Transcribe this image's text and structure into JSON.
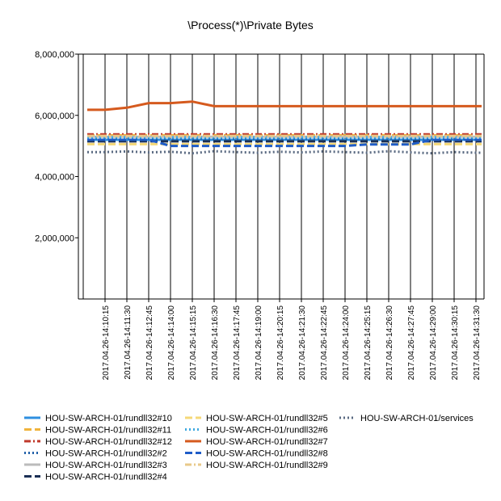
{
  "chart_data": {
    "type": "line",
    "title": "\\Process(*)\\Private Bytes",
    "ylim": [
      0,
      8000000
    ],
    "y_ticks": [
      "8,000,000",
      "6,000,000",
      "4,000,000",
      "2,000,000"
    ],
    "y_tick_values": [
      8000000,
      6000000,
      4000000,
      2000000
    ],
    "grid": "vertical",
    "legend_position": "bottom",
    "x": [
      "2017.04.26-14:10:15",
      "2017.04.26-14:11:30",
      "2017.04.26-14:12:45",
      "2017.04.26-14:14:00",
      "2017.04.26-14:15:15",
      "2017.04.26-14:16:30",
      "2017.04.26-14:17:45",
      "2017.04.26-14:19:00",
      "2017.04.26-14:20:15",
      "2017.04.26-14:21:30",
      "2017.04.26-14:22:45",
      "2017.04.26-14:24:00",
      "2017.04.26-14:25:15",
      "2017.04.26-14:26:30",
      "2017.04.26-14:27:45",
      "2017.04.26-14:29:00",
      "2017.04.26-14:30:15",
      "2017.04.26-14:31:30"
    ],
    "series": [
      {
        "name": "HOU-SW-ARCH-01/rundll32#10",
        "color": "#2e8fe0",
        "style": "solid",
        "values": [
          5200000,
          5200000,
          5200000,
          5200000,
          5200000,
          5200000,
          5200000,
          5200000,
          5200000,
          5200000,
          5200000,
          5200000,
          5200000,
          5200000,
          5200000,
          5200000,
          5200000,
          5200000
        ]
      },
      {
        "name": "HOU-SW-ARCH-01/rundll32#11",
        "color": "#f0b43c",
        "style": "dashed",
        "values": [
          5350000,
          5350000,
          5350000,
          5350000,
          5350000,
          5350000,
          5350000,
          5350000,
          5350000,
          5350000,
          5350000,
          5350000,
          5350000,
          5350000,
          5350000,
          5350000,
          5350000,
          5350000
        ]
      },
      {
        "name": "HOU-SW-ARCH-01/rundll32#12",
        "color": "#c0392b",
        "style": "dashdot",
        "values": [
          5380000,
          5380000,
          5380000,
          5380000,
          5380000,
          5380000,
          5380000,
          5380000,
          5380000,
          5380000,
          5380000,
          5380000,
          5380000,
          5380000,
          5380000,
          5380000,
          5380000,
          5380000
        ]
      },
      {
        "name": "HOU-SW-ARCH-01/rundll32#2",
        "color": "#1f5fa8",
        "style": "dotted",
        "values": [
          5250000,
          5250000,
          5250000,
          5250000,
          5250000,
          5250000,
          5250000,
          5250000,
          5250000,
          5250000,
          5250000,
          5250000,
          5250000,
          5250000,
          5250000,
          5250000,
          5250000,
          5250000
        ]
      },
      {
        "name": "HOU-SW-ARCH-01/rundll32#3",
        "color": "#bbbbbb",
        "style": "solid",
        "values": [
          5300000,
          5300000,
          5300000,
          5300000,
          5300000,
          5300000,
          5300000,
          5300000,
          5300000,
          5300000,
          5300000,
          5300000,
          5300000,
          5300000,
          5300000,
          5300000,
          5300000,
          5300000
        ]
      },
      {
        "name": "HOU-SW-ARCH-01/rundll32#4",
        "color": "#1a2f55",
        "style": "dashed",
        "values": [
          5150000,
          5150000,
          5150000,
          5150000,
          5150000,
          5150000,
          5150000,
          5150000,
          5150000,
          5150000,
          5150000,
          5150000,
          5150000,
          5150000,
          5150000,
          5150000,
          5150000,
          5150000
        ]
      },
      {
        "name": "HOU-SW-ARCH-01/rundll32#5",
        "color": "#f5d878",
        "style": "dashed",
        "values": [
          5060000,
          5060000,
          5060000,
          5060000,
          5060000,
          5060000,
          5060000,
          5060000,
          5060000,
          5060000,
          5060000,
          5060000,
          5060000,
          5060000,
          5060000,
          5060000,
          5060000,
          5060000
        ]
      },
      {
        "name": "HOU-SW-ARCH-01/rundll32#6",
        "color": "#3fa9e0",
        "style": "dotted",
        "values": [
          5280000,
          5280000,
          5280000,
          5280000,
          5280000,
          5280000,
          5280000,
          5280000,
          5280000,
          5280000,
          5280000,
          5280000,
          5280000,
          5280000,
          5280000,
          5280000,
          5280000,
          5280000
        ]
      },
      {
        "name": "HOU-SW-ARCH-01/rundll32#7",
        "color": "#d55a1e",
        "style": "solid",
        "values": [
          6180000,
          6250000,
          6400000,
          6400000,
          6450000,
          6300000,
          6300000,
          6300000,
          6300000,
          6300000,
          6300000,
          6300000,
          6300000,
          6300000,
          6300000,
          6300000,
          6300000,
          6300000
        ]
      },
      {
        "name": "HOU-SW-ARCH-01/rundll32#8",
        "color": "#1e5cc8",
        "style": "dashed",
        "values": [
          5200000,
          5200000,
          5200000,
          5000000,
          5000000,
          5000000,
          5000000,
          5000000,
          5000000,
          5000000,
          5000000,
          5000000,
          5050000,
          5050000,
          5050000,
          5200000,
          5200000,
          5200000
        ]
      },
      {
        "name": "HOU-SW-ARCH-01/rundll32#9",
        "color": "#e8c98a",
        "style": "dashdot",
        "values": [
          5330000,
          5330000,
          5330000,
          5330000,
          5330000,
          5330000,
          5330000,
          5330000,
          5330000,
          5330000,
          5330000,
          5330000,
          5330000,
          5330000,
          5330000,
          5330000,
          5330000,
          5330000
        ]
      },
      {
        "name": "HOU-SW-ARCH-01/services",
        "color": "#5a6a82",
        "style": "dotted",
        "values": [
          4800000,
          4820000,
          4790000,
          4810000,
          4760000,
          4830000,
          4800000,
          4780000,
          4810000,
          4790000,
          4820000,
          4800000,
          4780000,
          4830000,
          4790000,
          4760000,
          4800000,
          4780000
        ]
      }
    ]
  }
}
